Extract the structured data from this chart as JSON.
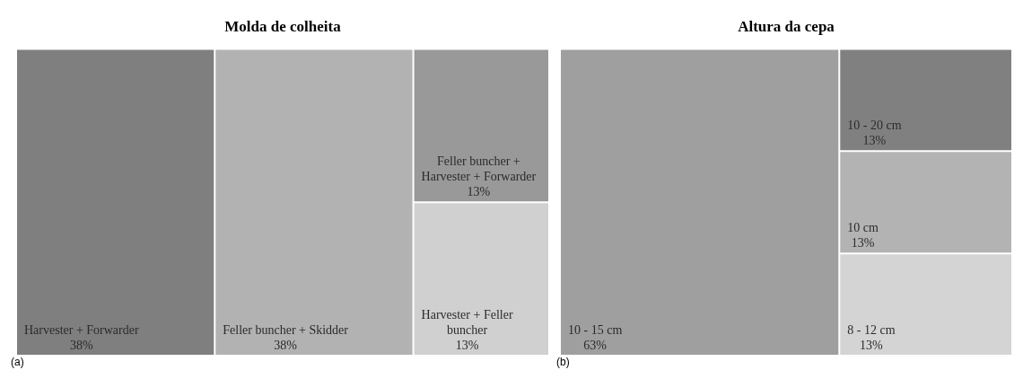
{
  "chart_data": [
    {
      "type": "other",
      "title": "Molda de colheita",
      "categories": [
        "Harvester + Forwarder",
        "Feller buncher + Skidder",
        "Feller buncher + Harvester + Forwarder",
        "Harvester + Feller buncher"
      ],
      "values": [
        38,
        38,
        13,
        13
      ],
      "value_labels": [
        "38%",
        "38%",
        "13%",
        "13%"
      ],
      "colors": [
        "#7f7f7f",
        "#b2b2b2",
        "#999999",
        "#d0d0d0"
      ],
      "annotations": [
        "(a)"
      ]
    },
    {
      "type": "other",
      "title": "Altura da cepa",
      "categories": [
        "10 - 15 cm",
        "10 - 20 cm",
        "10 cm",
        "8 - 12 cm"
      ],
      "values": [
        63,
        13,
        13,
        13
      ],
      "value_labels": [
        "63%",
        "13%",
        "13%",
        "13%"
      ],
      "colors": [
        "#9f9f9f",
        "#808080",
        "#b3b3b3",
        "#d4d4d4"
      ],
      "annotations": [
        "(b)"
      ]
    }
  ]
}
